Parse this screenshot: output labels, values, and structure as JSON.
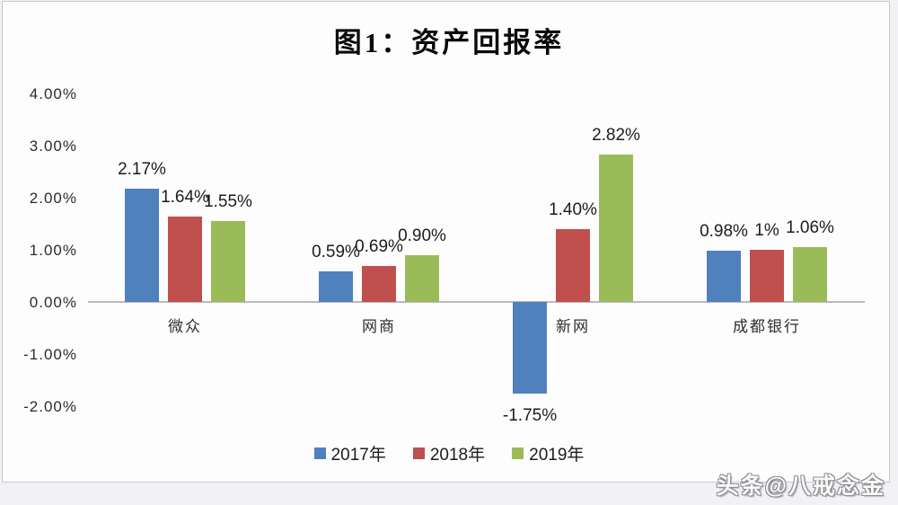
{
  "page_title": "图1：资产回报率",
  "watermark": {
    "text": "头条@八戒念金"
  },
  "chart_data": {
    "type": "bar",
    "title": "图1：资产回报率",
    "categories": [
      "微众",
      "网商",
      "新网",
      "成都银行"
    ],
    "series": [
      {
        "name": "2017年",
        "color": "#4f81bd",
        "values": [
          2.17,
          0.59,
          -1.75,
          0.98
        ],
        "labels": [
          "2.17%",
          "0.59%",
          "-1.75%",
          "0.98%"
        ]
      },
      {
        "name": "2018年",
        "color": "#c0504d",
        "values": [
          1.64,
          0.69,
          1.4,
          1.0
        ],
        "labels": [
          "1.64%",
          "0.69%",
          "1.40%",
          "1%"
        ]
      },
      {
        "name": "2019年",
        "color": "#9bbb59",
        "values": [
          1.55,
          0.9,
          2.82,
          1.06
        ],
        "labels": [
          "1.55%",
          "0.90%",
          "2.82%",
          "1.06%"
        ]
      }
    ],
    "ylim": [
      -2,
      4
    ],
    "ytick_labels": [
      "4.00%",
      "3.00%",
      "2.00%",
      "1.00%",
      "0.00%",
      "-1.00%",
      "-2.00%"
    ],
    "ytick_values": [
      4,
      3,
      2,
      1,
      0,
      -1,
      -2
    ],
    "grid": false,
    "legend_position": "bottom",
    "axis_color": "#b9b9be"
  }
}
